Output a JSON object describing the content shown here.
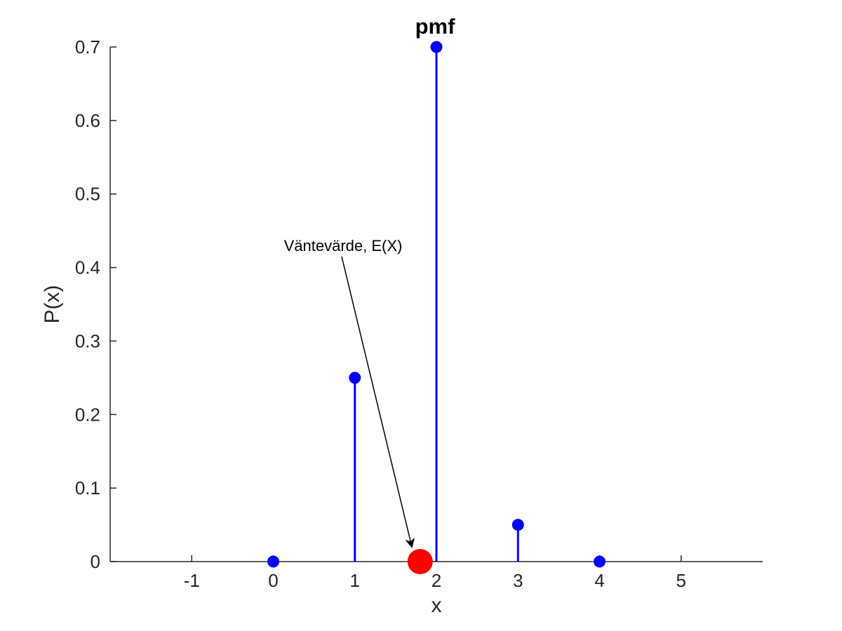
{
  "chart_data": {
    "type": "stem",
    "title": "pmf",
    "xlabel": "x",
    "ylabel": "P(x)",
    "xlim": [
      -2,
      6
    ],
    "ylim": [
      0,
      0.7
    ],
    "xticks": [
      "-1",
      "0",
      "1",
      "2",
      "3",
      "4",
      "5"
    ],
    "yticks": [
      "0",
      "0.1",
      "0.2",
      "0.3",
      "0.4",
      "0.5",
      "0.6",
      "0.7"
    ],
    "grid": false,
    "series": [
      {
        "x": [
          0,
          1,
          2,
          3,
          4
        ],
        "y": [
          0,
          0.25,
          0.7,
          0.05,
          0
        ],
        "color": "#0000ff"
      }
    ],
    "expected_value": {
      "x": 1.8,
      "y": 0,
      "color": "#ff0000"
    },
    "annotation": {
      "text": "Väntevärde, E(X)"
    }
  }
}
